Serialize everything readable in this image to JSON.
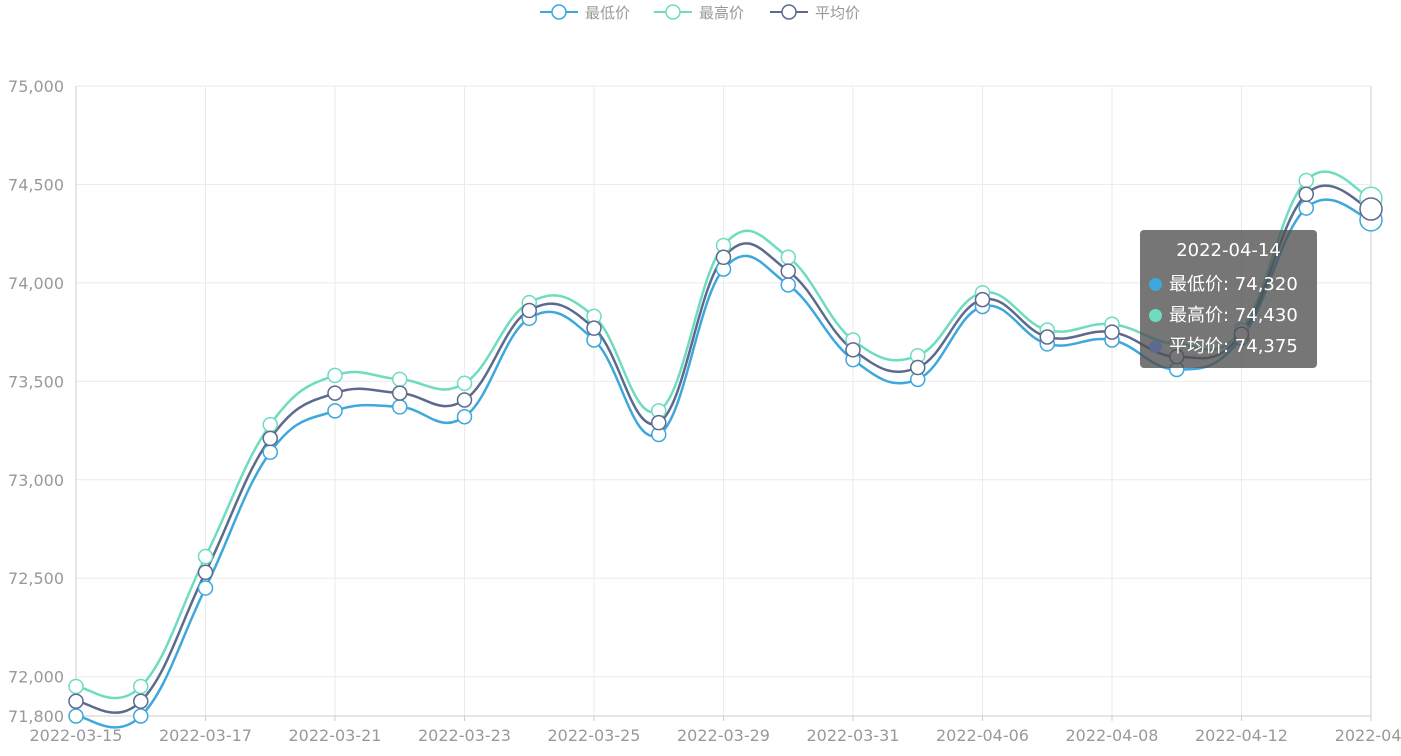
{
  "chart_data": {
    "type": "line",
    "title": "",
    "xlabel": "",
    "ylabel": "",
    "smooth": true,
    "ylim": [
      71800,
      75000
    ],
    "yticks": [
      71800,
      72000,
      72500,
      73000,
      73500,
      74000,
      74500,
      75000
    ],
    "ytick_labels": [
      "71,800",
      "72,000",
      "72,500",
      "73,000",
      "73,500",
      "74,000",
      "74,500",
      "75,000"
    ],
    "x": [
      "2022-03-15",
      "2022-03-16",
      "2022-03-17",
      "2022-03-18",
      "2022-03-21",
      "2022-03-22",
      "2022-03-23",
      "2022-03-24",
      "2022-03-25",
      "2022-03-28",
      "2022-03-29",
      "2022-03-30",
      "2022-03-31",
      "2022-04-01",
      "2022-04-06",
      "2022-04-07",
      "2022-04-08",
      "2022-04-11",
      "2022-04-12",
      "2022-04-13",
      "2022-04-14"
    ],
    "xtick_labels": [
      "2022-03-15",
      "2022-03-17",
      "2022-03-21",
      "2022-03-23",
      "2022-03-25",
      "2022-03-29",
      "2022-03-31",
      "2022-04-06",
      "2022-04-08",
      "2022-04-12",
      "2022-04-"
    ],
    "grid": true,
    "legend_position": "top-center",
    "series": [
      {
        "name": "最低价",
        "color": "#3ea7dc",
        "values": [
          71800,
          71800,
          72450,
          73140,
          73350,
          73370,
          73320,
          73820,
          73710,
          73230,
          74070,
          73990,
          73610,
          73510,
          73880,
          73690,
          73710,
          73560,
          73720,
          74380,
          74320
        ]
      },
      {
        "name": "最高价",
        "color": "#6fdcc0",
        "values": [
          71950,
          71950,
          72610,
          73280,
          73530,
          73510,
          73490,
          73900,
          73830,
          73350,
          74190,
          74130,
          73710,
          73630,
          73950,
          73760,
          73790,
          73690,
          73760,
          74520,
          74430
        ]
      },
      {
        "name": "平均价",
        "color": "#5d6a8e",
        "values": [
          71875,
          71875,
          72530,
          73210,
          73440,
          73440,
          73405,
          73860,
          73770,
          73290,
          74130,
          74060,
          73660,
          73570,
          73915,
          73725,
          73750,
          73625,
          73740,
          74450,
          74375
        ]
      }
    ]
  },
  "tooltip": {
    "date": "2022-04-14",
    "rows": [
      {
        "text": "最低价: 74,320",
        "color": "#3ea7dc"
      },
      {
        "text": "最高价: 74,430",
        "color": "#6fdcc0"
      },
      {
        "text": "平均价: 74,375",
        "color": "#5d6a8e"
      }
    ]
  }
}
